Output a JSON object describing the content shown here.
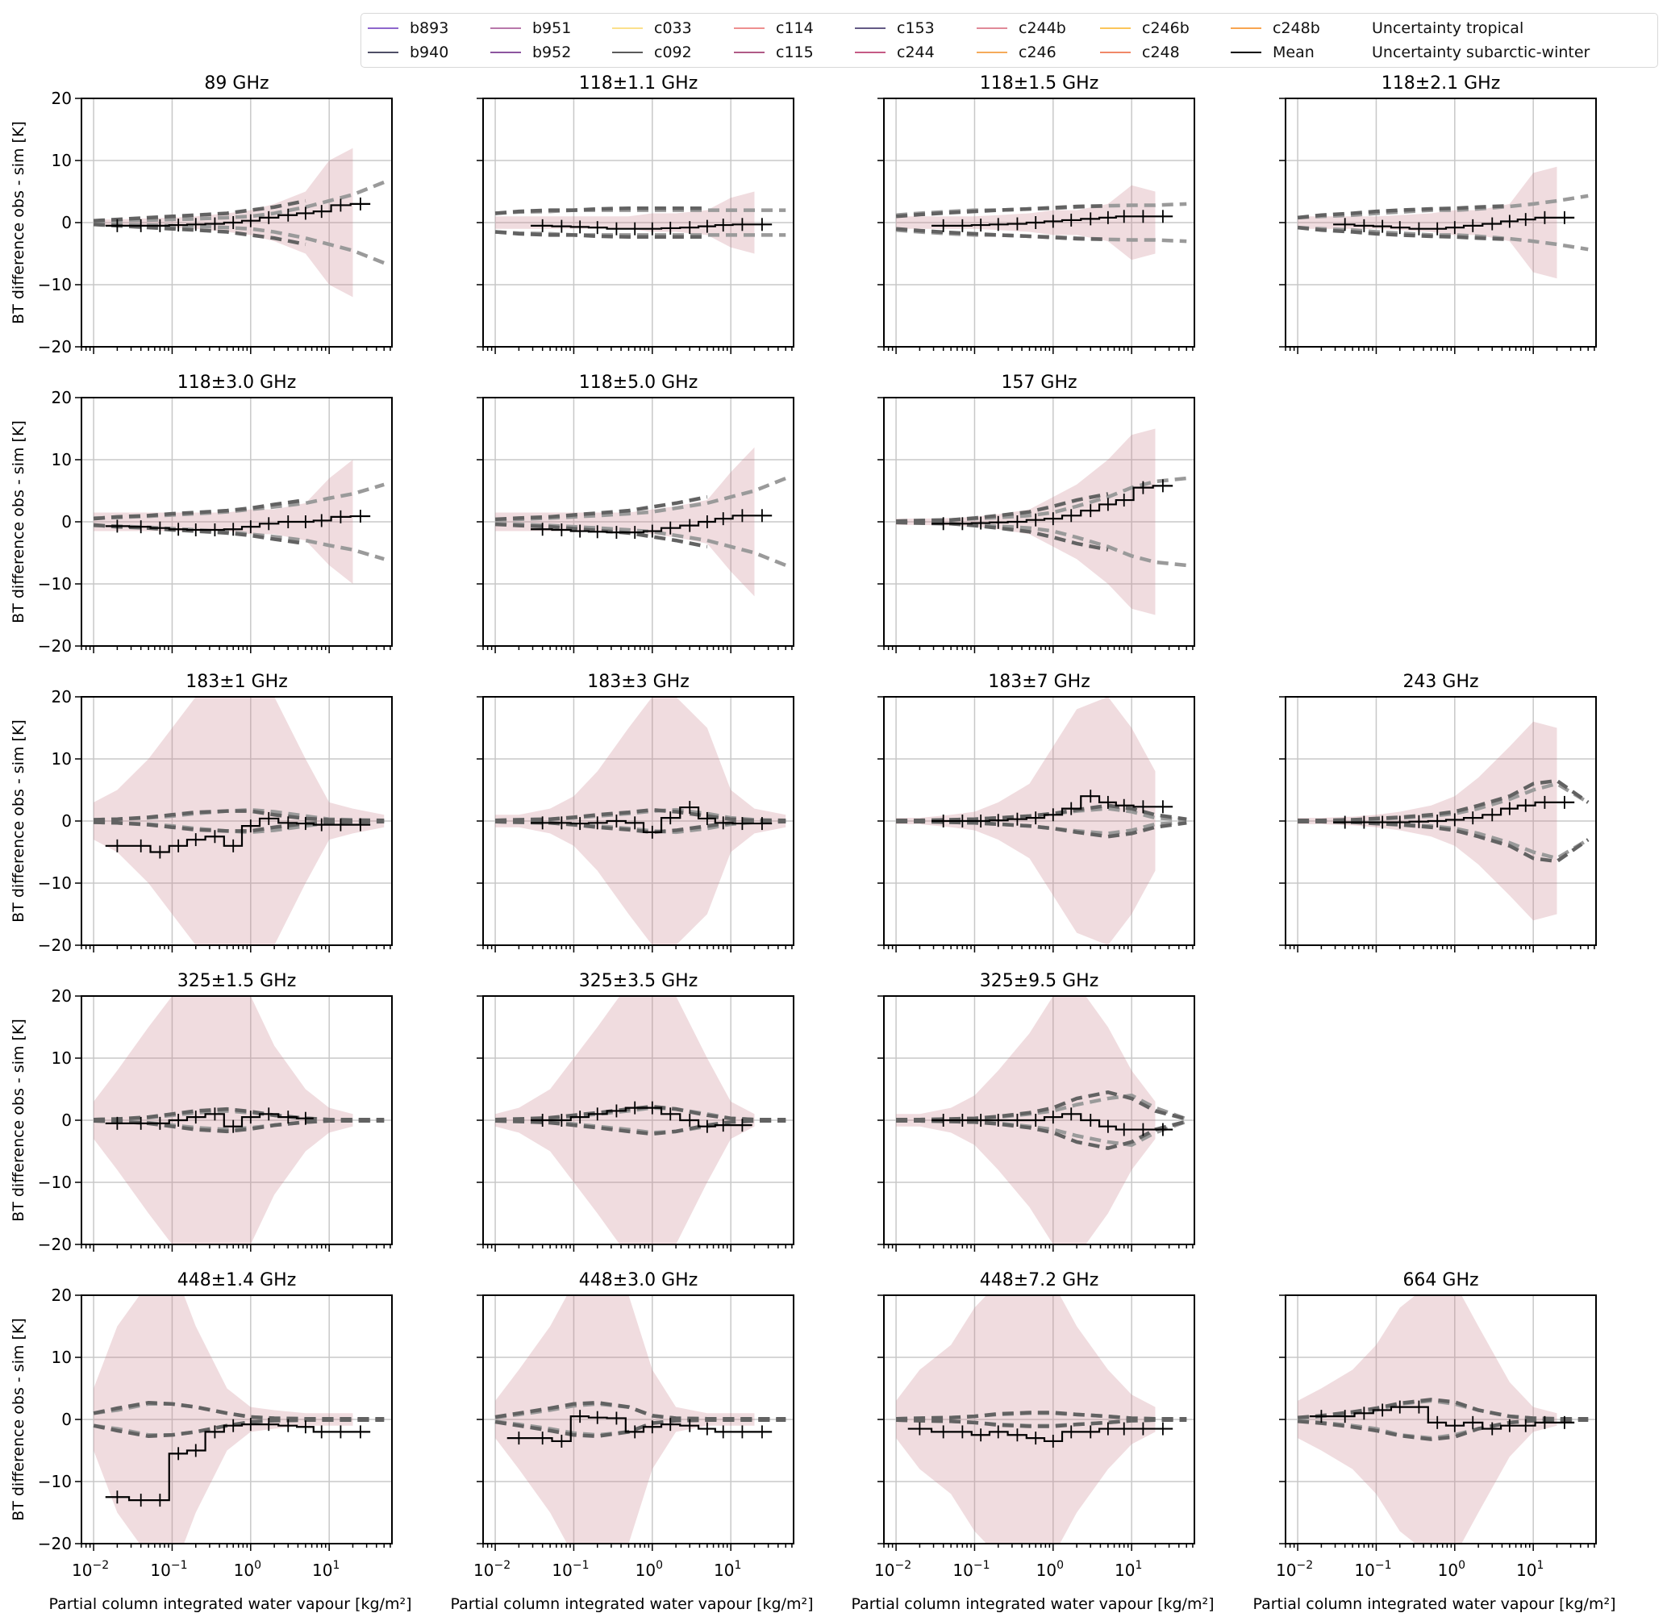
{
  "legend": {
    "placement": "top-right",
    "items": [
      {
        "label": "b893",
        "color": "#8e66cc",
        "style": "solid"
      },
      {
        "label": "b940",
        "color": "#4f4f66",
        "style": "solid"
      },
      {
        "label": "b951",
        "color": "#b878aa",
        "style": "solid"
      },
      {
        "label": "b952",
        "color": "#8c559f",
        "style": "solid"
      },
      {
        "label": "c033",
        "color": "#fbe08c",
        "style": "solid"
      },
      {
        "label": "c092",
        "color": "#5a5a5a",
        "style": "solid"
      },
      {
        "label": "c114",
        "color": "#ee9090",
        "style": "solid"
      },
      {
        "label": "c115",
        "color": "#b05a86",
        "style": "solid"
      },
      {
        "label": "c153",
        "color": "#635a85",
        "style": "solid"
      },
      {
        "label": "c244",
        "color": "#c55a85",
        "style": "solid"
      },
      {
        "label": "c244b",
        "color": "#e08a98",
        "style": "solid"
      },
      {
        "label": "c246",
        "color": "#f5aa5a",
        "style": "solid"
      },
      {
        "label": "c246b",
        "color": "#fbc55a",
        "style": "solid"
      },
      {
        "label": "c248",
        "color": "#f08868",
        "style": "solid"
      },
      {
        "label": "c248b",
        "color": "#f8a550",
        "style": "solid"
      },
      {
        "label": "Mean",
        "color": "#000000",
        "style": "solid"
      },
      {
        "label": "Uncertainty tropical",
        "color": "#9a9a9a",
        "style": "dashed"
      },
      {
        "label": "Uncertainty subarctic-winter",
        "color": "#626262",
        "style": "dashed"
      }
    ]
  },
  "chart_data": {
    "type": "line",
    "xscale": "log",
    "xlim": [
      0.007,
      63
    ],
    "ylim": [
      -20,
      20
    ],
    "grid": true,
    "xlabel": "Partial column integrated water vapour [kg/m²]",
    "ylabel": "BT difference obs - sim [K]",
    "x_ticks": [
      {
        "base": "10",
        "exp": "−2",
        "value": 0.01
      },
      {
        "base": "10",
        "exp": "−1",
        "value": 0.1
      },
      {
        "base": "10",
        "exp": "0",
        "value": 1
      },
      {
        "base": "10",
        "exp": "1",
        "value": 10
      }
    ],
    "y_ticks": [
      "−20",
      "−10",
      "0",
      "10",
      "20"
    ],
    "y_tick_values": [
      -20,
      -10,
      0,
      10,
      20
    ],
    "mean_x": [
      0.02,
      0.04,
      0.07,
      0.12,
      0.2,
      0.35,
      0.6,
      1,
      1.7,
      3,
      5,
      8,
      14,
      25
    ],
    "uncertainty_x": [
      0.01,
      0.02,
      0.05,
      0.1,
      0.2,
      0.5,
      1,
      2,
      5,
      10,
      20,
      50
    ],
    "spread_color": "#c8828c",
    "panels": [
      {
        "title": "89 GHz",
        "mean": [
          -0.5,
          -0.5,
          -0.5,
          -0.4,
          -0.3,
          -0.2,
          0,
          0.3,
          0.8,
          1.2,
          1.5,
          1.8,
          2.8,
          3
        ],
        "unc_tropical": [
          0.3,
          0.3,
          0.4,
          0.5,
          0.6,
          0.8,
          1,
          1.5,
          2.5,
          3.5,
          4.5,
          6.5
        ],
        "unc_subarctic": [
          0.3,
          0.5,
          0.8,
          1,
          1.2,
          1.5,
          2,
          2.5,
          3.5,
          null,
          null,
          null
        ],
        "spread": [
          0.5,
          0.5,
          0.7,
          0.8,
          1,
          1.5,
          2,
          3,
          5,
          10,
          12,
          null
        ]
      },
      {
        "title": "118±1.1 GHz",
        "mean": [
          null,
          -0.5,
          -0.6,
          -0.7,
          -0.8,
          -1,
          -1,
          -1,
          -0.9,
          -0.8,
          -0.6,
          -0.4,
          -0.3,
          -0.3
        ],
        "unc_tropical": [
          1.5,
          1.7,
          1.8,
          2,
          2,
          2,
          2,
          2,
          2,
          2,
          2,
          2
        ],
        "unc_subarctic": [
          1.5,
          1.8,
          2,
          2,
          2.2,
          2.3,
          2.3,
          2.3,
          2.3,
          null,
          null,
          null
        ],
        "spread": [
          1,
          1,
          1,
          1,
          1,
          1,
          1.5,
          1.5,
          2,
          4,
          5,
          null
        ]
      },
      {
        "title": "118±1.5 GHz",
        "mean": [
          null,
          -0.5,
          -0.5,
          -0.4,
          -0.3,
          -0.2,
          0,
          0.2,
          0.4,
          0.6,
          0.8,
          1,
          1,
          1
        ],
        "unc_tropical": [
          1.2,
          1.5,
          1.8,
          2,
          2,
          2.2,
          2.3,
          2.5,
          2.7,
          2.8,
          2.8,
          3
        ],
        "unc_subarctic": [
          1,
          1.3,
          1.6,
          1.8,
          2,
          2.2,
          2.4,
          2.6,
          2.7,
          null,
          null,
          null
        ],
        "spread": [
          1,
          1,
          1,
          1,
          1.2,
          1.5,
          2,
          2,
          3,
          6,
          5,
          null
        ]
      },
      {
        "title": "118±2.1 GHz",
        "mean": [
          null,
          -0.3,
          -0.5,
          -0.6,
          -0.8,
          -1,
          -1,
          -0.8,
          -0.5,
          -0.2,
          0.2,
          0.5,
          0.8,
          0.8
        ],
        "unc_tropical": [
          0.8,
          1,
          1.2,
          1.5,
          1.7,
          2,
          2,
          2.2,
          2.6,
          3,
          3.5,
          4.3
        ],
        "unc_subarctic": [
          0.8,
          1.2,
          1.5,
          1.8,
          2,
          2.2,
          2.3,
          2.5,
          2.7,
          null,
          null,
          null
        ],
        "spread": [
          1,
          1,
          1,
          1,
          1.2,
          1.5,
          2,
          2,
          3,
          8,
          9,
          null
        ]
      },
      {
        "title": "118±3.0 GHz",
        "mean": [
          -0.7,
          -0.8,
          -1,
          -1.2,
          -1.3,
          -1.3,
          -1.2,
          -0.8,
          -0.3,
          0,
          0,
          0.2,
          0.8,
          0.9
        ],
        "unc_tropical": [
          0.6,
          0.7,
          0.9,
          1.1,
          1.3,
          1.6,
          2,
          2.4,
          3,
          3.8,
          4.5,
          6
        ],
        "unc_subarctic": [
          0.5,
          0.8,
          1,
          1.3,
          1.5,
          1.8,
          2.2,
          2.8,
          3.5,
          null,
          null,
          null
        ],
        "spread": [
          1.5,
          1.5,
          1.5,
          1.5,
          1.5,
          1.5,
          2,
          2,
          3,
          7,
          10,
          null
        ]
      },
      {
        "title": "118±5.0 GHz",
        "mean": [
          null,
          -1.2,
          -1.3,
          -1.5,
          -1.6,
          -1.7,
          -1.7,
          -1.5,
          -1,
          -0.6,
          0,
          0.5,
          1,
          1
        ],
        "unc_tropical": [
          0.3,
          0.4,
          0.6,
          0.8,
          1,
          1.3,
          1.6,
          2.2,
          3,
          4,
          5,
          7
        ],
        "unc_subarctic": [
          0.4,
          0.6,
          0.8,
          1.1,
          1.4,
          1.8,
          2.4,
          3,
          4,
          null,
          null,
          null
        ],
        "spread": [
          1.5,
          1.5,
          1.5,
          1.5,
          1.5,
          1.5,
          2,
          2.5,
          3.5,
          8,
          12,
          null
        ]
      },
      {
        "title": "157 GHz",
        "mean": [
          null,
          -0.3,
          -0.3,
          -0.2,
          -0.1,
          0,
          0.3,
          0.5,
          1,
          1.8,
          2.8,
          3.5,
          5.5,
          5.8
        ],
        "unc_tropical": [
          0.1,
          0.2,
          0.3,
          0.5,
          0.7,
          1,
          1.5,
          2.5,
          4,
          5.5,
          6.5,
          7
        ],
        "unc_subarctic": [
          0.1,
          0.2,
          0.3,
          0.6,
          1,
          1.6,
          2.5,
          3.5,
          4.5,
          null,
          null,
          null
        ],
        "spread": [
          0.5,
          0.5,
          0.6,
          0.8,
          1.2,
          2,
          4,
          6,
          10,
          14,
          15,
          null
        ]
      },
      null,
      {
        "title": "183±1 GHz",
        "mean": [
          -4,
          -4,
          -5,
          -4,
          -3,
          -2.5,
          -4,
          -0.8,
          0.4,
          -0.3,
          -0.4,
          -0.6,
          -0.6,
          -0.6
        ],
        "unc_tropical": [
          0.2,
          0.3,
          0.5,
          0.8,
          1.2,
          1.6,
          1.8,
          1.5,
          0.8,
          0.3,
          0.2,
          0.1
        ],
        "unc_subarctic": [
          0.2,
          0.3,
          0.6,
          1,
          1.4,
          1.6,
          1.6,
          1,
          0.4,
          0.2,
          0.1,
          0.1
        ],
        "spread": [
          3,
          5,
          10,
          15,
          20,
          22,
          22,
          20,
          10,
          3,
          2,
          1
        ]
      },
      {
        "title": "183±3 GHz",
        "mean": [
          null,
          -0.3,
          -0.3,
          -0.4,
          -0.3,
          0,
          -0.3,
          -1.8,
          0.5,
          2.2,
          0.4,
          -0.3,
          -0.4,
          -0.4
        ],
        "unc_tropical": [
          0.1,
          0.2,
          0.3,
          0.5,
          0.8,
          1.2,
          1.6,
          1.8,
          1.2,
          0.5,
          0.2,
          0.1
        ],
        "unc_subarctic": [
          0.1,
          0.2,
          0.3,
          0.6,
          1,
          1.4,
          1.8,
          1.5,
          0.8,
          0.3,
          0.1,
          0.1
        ],
        "spread": [
          1,
          1,
          2,
          4,
          8,
          15,
          20,
          20,
          15,
          5,
          2,
          1
        ]
      },
      {
        "title": "183±7 GHz",
        "mean": [
          null,
          0,
          0,
          0,
          0.1,
          0.3,
          0.5,
          1,
          2,
          4,
          3,
          2.5,
          2.3,
          2.3
        ],
        "unc_tropical": [
          0.1,
          0.1,
          0.2,
          0.3,
          0.5,
          0.8,
          1.2,
          1.6,
          2,
          1.5,
          0.5,
          0.2
        ],
        "unc_subarctic": [
          0.1,
          0.1,
          0.2,
          0.3,
          0.5,
          0.8,
          1.2,
          1.8,
          2.5,
          2,
          1,
          0.3
        ],
        "spread": [
          0.5,
          0.5,
          1,
          1.5,
          3,
          6,
          12,
          18,
          20,
          15,
          8,
          null
        ]
      },
      {
        "title": "243 GHz",
        "mean": [
          null,
          -0.2,
          -0.2,
          -0.2,
          -0.2,
          -0.1,
          0,
          0.2,
          0.5,
          1,
          2,
          2.5,
          3,
          3
        ],
        "unc_tropical": [
          0.1,
          0.1,
          0.2,
          0.3,
          0.5,
          0.8,
          1.2,
          2,
          3.5,
          5,
          6,
          3
        ],
        "unc_subarctic": [
          0.1,
          0.1,
          0.2,
          0.4,
          0.6,
          1,
          1.5,
          2.5,
          4,
          6,
          6.5,
          3
        ],
        "spread": [
          0.5,
          0.5,
          0.7,
          1,
          1.5,
          2.5,
          4,
          7,
          12,
          16,
          15,
          null
        ]
      },
      {
        "title": "325±1.5 GHz",
        "mean": [
          -0.5,
          -0.5,
          -0.5,
          0,
          0.5,
          1,
          -1,
          0.5,
          1,
          0.5,
          0.3,
          null,
          null,
          null
        ],
        "unc_tropical": [
          0.1,
          0.2,
          0.4,
          0.8,
          1.2,
          1.5,
          1.2,
          0.8,
          0.3,
          0.1,
          0.1,
          0.1
        ],
        "unc_subarctic": [
          0.1,
          0.2,
          0.5,
          1,
          1.5,
          1.8,
          1.4,
          0.8,
          0.3,
          0.1,
          0.1,
          0.1
        ],
        "spread": [
          3,
          8,
          15,
          20,
          25,
          25,
          20,
          12,
          5,
          2,
          1,
          null
        ]
      },
      {
        "title": "325±3.5 GHz",
        "mean": [
          null,
          0,
          0,
          0.5,
          1,
          1.5,
          2,
          2,
          1,
          0,
          -1,
          -0.8,
          -0.8,
          null
        ],
        "unc_tropical": [
          0.1,
          0.2,
          0.3,
          0.6,
          1,
          1.5,
          2,
          1.8,
          1,
          0.3,
          0.1,
          0.1
        ],
        "unc_subarctic": [
          0.1,
          0.2,
          0.4,
          0.8,
          1.2,
          1.8,
          2.2,
          1.8,
          0.8,
          0.3,
          0.1,
          0.1
        ],
        "spread": [
          1,
          2,
          5,
          10,
          15,
          22,
          25,
          20,
          10,
          3,
          1,
          null
        ]
      },
      {
        "title": "325±9.5 GHz",
        "mean": [
          null,
          0,
          0,
          0,
          0,
          0,
          0,
          0.5,
          1,
          0,
          -1,
          -1.5,
          -1.5,
          -1.5
        ],
        "unc_tropical": [
          0.1,
          0.1,
          0.2,
          0.3,
          0.5,
          1,
          1.5,
          2.5,
          3.5,
          4,
          2,
          0.2
        ],
        "unc_subarctic": [
          0.1,
          0.1,
          0.2,
          0.3,
          0.6,
          1.2,
          2,
          3.5,
          4.5,
          3.5,
          1.5,
          0.2
        ],
        "spread": [
          1,
          1,
          2,
          4,
          8,
          14,
          20,
          22,
          15,
          8,
          3,
          null
        ]
      },
      null,
      {
        "title": "448±1.4 GHz",
        "mean": [
          -12.5,
          -13,
          -13,
          -5.5,
          -5,
          -2,
          -1,
          -0.8,
          -0.8,
          -1,
          -1.2,
          -2,
          -2,
          -2
        ],
        "unc_tropical": [
          1,
          1.5,
          2.5,
          2.5,
          2,
          1,
          0.4,
          0.2,
          0.1,
          0.1,
          0.1,
          0.1
        ],
        "unc_subarctic": [
          1,
          1.8,
          2.7,
          2.5,
          2,
          1,
          0.4,
          0.2,
          0.1,
          0.1,
          0.1,
          0.1
        ],
        "spread": [
          5,
          15,
          22,
          25,
          15,
          5,
          2,
          1.5,
          1,
          1,
          1,
          null
        ]
      },
      {
        "title": "448±3.0 GHz",
        "mean": [
          -3,
          -3,
          -3.5,
          0.5,
          0.3,
          0.2,
          -2,
          -1.2,
          -0.8,
          -1,
          -1.5,
          -2,
          -2,
          -2
        ],
        "unc_tropical": [
          0.3,
          0.8,
          1.5,
          2.2,
          2.5,
          2,
          0.6,
          0.2,
          0.1,
          0.1,
          0.1,
          0.1
        ],
        "unc_subarctic": [
          0.4,
          1,
          1.8,
          2.5,
          2.7,
          2,
          0.6,
          0.2,
          0.1,
          0.1,
          0.1,
          0.1
        ],
        "spread": [
          3,
          8,
          15,
          22,
          25,
          20,
          8,
          2,
          1,
          1,
          1,
          null
        ]
      },
      {
        "title": "448±7.2 GHz",
        "mean": [
          -1.5,
          -2,
          -2,
          -2.5,
          -2,
          -2.5,
          -3,
          -3.5,
          -2,
          -2,
          -1.5,
          -1.5,
          -1.5,
          -1.5
        ],
        "unc_tropical": [
          0.1,
          0.2,
          0.3,
          0.5,
          0.8,
          1,
          1,
          0.8,
          0.5,
          0.2,
          0.1,
          0.1
        ],
        "unc_subarctic": [
          0.1,
          0.2,
          0.3,
          0.5,
          0.9,
          1.1,
          1.1,
          0.8,
          0.5,
          0.2,
          0.1,
          0.1
        ],
        "spread": [
          3,
          8,
          12,
          18,
          22,
          25,
          22,
          15,
          8,
          4,
          2,
          null
        ]
      },
      {
        "title": "664 GHz",
        "mean": [
          0.5,
          0.5,
          1,
          1.5,
          2,
          2,
          -0.5,
          -1,
          -0.5,
          -1.5,
          -1,
          -1,
          -0.5,
          -0.5
        ],
        "unc_tropical": [
          0.2,
          0.5,
          1,
          1.5,
          2.5,
          3,
          2.5,
          1.5,
          0.5,
          0.2,
          0.1,
          0.1
        ],
        "unc_subarctic": [
          0.3,
          0.6,
          1.2,
          1.8,
          2.6,
          3.2,
          2.8,
          1.5,
          0.5,
          0.2,
          0.1,
          0.1
        ],
        "spread": [
          3,
          5,
          8,
          12,
          18,
          22,
          22,
          15,
          6,
          2,
          1,
          null
        ]
      }
    ]
  }
}
